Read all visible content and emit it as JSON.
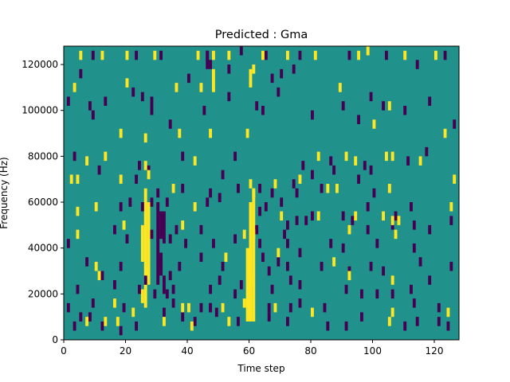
{
  "chart_data": {
    "type": "heatmap",
    "title": "Predicted : Gma",
    "xlabel": "Time step",
    "ylabel": "Frequency (Hz)",
    "xlim": [
      0,
      128
    ],
    "ylim": [
      0,
      128000
    ],
    "x_ticks": [
      0,
      20,
      40,
      60,
      80,
      100,
      120
    ],
    "y_ticks": [
      0,
      20000,
      40000,
      60000,
      80000,
      100000,
      120000
    ],
    "grid": false,
    "colormap": "viridis",
    "colors": {
      "background": "#21918c",
      "high": "#fde725",
      "low": "#440154"
    },
    "cell_height_hz": 2000,
    "high_cells": [
      [
        5,
        122000
      ],
      [
        12,
        122000
      ],
      [
        20,
        122000
      ],
      [
        29,
        122000
      ],
      [
        43,
        122000
      ],
      [
        48,
        122000
      ],
      [
        53,
        122000
      ],
      [
        64,
        122000
      ],
      [
        72,
        122000
      ],
      [
        81,
        122000
      ],
      [
        95,
        122000
      ],
      [
        98,
        124000
      ],
      [
        110,
        122000
      ],
      [
        120,
        122000
      ],
      [
        3,
        108000
      ],
      [
        20,
        110000
      ],
      [
        36,
        108000
      ],
      [
        44,
        108000
      ],
      [
        61,
        116000
      ],
      [
        89,
        108000
      ],
      [
        105,
        100000
      ],
      [
        18,
        88000
      ],
      [
        26,
        86000
      ],
      [
        37,
        88000
      ],
      [
        47,
        88000
      ],
      [
        59,
        88000
      ],
      [
        100,
        92000
      ],
      [
        123,
        88000
      ],
      [
        7,
        76000
      ],
      [
        13,
        78000
      ],
      [
        26,
        74000
      ],
      [
        27,
        70000
      ],
      [
        42,
        76000
      ],
      [
        82,
        78000
      ],
      [
        91,
        78000
      ],
      [
        94,
        76000
      ],
      [
        104,
        78000
      ],
      [
        106,
        78000
      ],
      [
        115,
        76000
      ],
      [
        2,
        68000
      ],
      [
        4,
        68000
      ],
      [
        18,
        68000
      ],
      [
        35,
        64000
      ],
      [
        60,
        66000
      ],
      [
        61,
        62000
      ],
      [
        68,
        66000
      ],
      [
        76,
        68000
      ],
      [
        85,
        64000
      ],
      [
        88,
        64000
      ],
      [
        105,
        64000
      ],
      [
        126,
        68000
      ],
      [
        4,
        54000
      ],
      [
        10,
        56000
      ],
      [
        42,
        56000
      ],
      [
        70,
        52000
      ],
      [
        82,
        52000
      ],
      [
        94,
        52000
      ],
      [
        103,
        52000
      ],
      [
        106,
        50000
      ],
      [
        125,
        56000
      ],
      [
        4,
        44000
      ],
      [
        19,
        48000
      ],
      [
        38,
        48000
      ],
      [
        58,
        44000
      ],
      [
        61,
        44000
      ],
      [
        92,
        46000
      ],
      [
        107,
        44000
      ],
      [
        108,
        50000
      ],
      [
        10,
        30000
      ],
      [
        11,
        26000
      ],
      [
        27,
        28000
      ],
      [
        52,
        34000
      ],
      [
        60,
        24000
      ],
      [
        69,
        36000
      ],
      [
        87,
        32000
      ],
      [
        92,
        26000
      ],
      [
        106,
        24000
      ],
      [
        16,
        14000
      ],
      [
        22,
        10000
      ],
      [
        38,
        12000
      ],
      [
        40,
        12000
      ],
      [
        51,
        12000
      ],
      [
        58,
        14000
      ],
      [
        68,
        12000
      ],
      [
        80,
        10000
      ],
      [
        106,
        10000
      ],
      [
        124,
        10000
      ],
      [
        7,
        6000
      ],
      [
        13,
        6000
      ],
      [
        17,
        6000
      ],
      [
        32,
        6000
      ],
      [
        41,
        4000
      ],
      [
        53,
        6000
      ],
      [
        105,
        6000
      ]
    ],
    "low_cells": [
      [
        9,
        122000
      ],
      [
        23,
        122000
      ],
      [
        46,
        122000
      ],
      [
        47,
        118000
      ],
      [
        57,
        124000
      ],
      [
        65,
        122000
      ],
      [
        76,
        122000
      ],
      [
        92,
        122000
      ],
      [
        104,
        122000
      ],
      [
        114,
        118000
      ],
      [
        123,
        122000
      ],
      [
        5,
        114000
      ],
      [
        31,
        122000
      ],
      [
        40,
        112000
      ],
      [
        53,
        116000
      ],
      [
        70,
        114000
      ],
      [
        67,
        112000
      ],
      [
        74,
        116000
      ],
      [
        1,
        102000
      ],
      [
        8,
        100000
      ],
      [
        13,
        102000
      ],
      [
        22,
        106000
      ],
      [
        25,
        104000
      ],
      [
        28,
        102000
      ],
      [
        53,
        104000
      ],
      [
        62,
        100000
      ],
      [
        69,
        106000
      ],
      [
        90,
        100000
      ],
      [
        99,
        104000
      ],
      [
        103,
        100000
      ],
      [
        118,
        102000
      ],
      [
        9,
        96000
      ],
      [
        28,
        98000
      ],
      [
        34,
        92000
      ],
      [
        45,
        98000
      ],
      [
        64,
        98000
      ],
      [
        80,
        96000
      ],
      [
        95,
        94000
      ],
      [
        110,
        98000
      ],
      [
        126,
        92000
      ],
      [
        3,
        78000
      ],
      [
        24,
        74000
      ],
      [
        27,
        72000
      ],
      [
        38,
        78000
      ],
      [
        55,
        78000
      ],
      [
        77,
        74000
      ],
      [
        86,
        76000
      ],
      [
        87,
        72000
      ],
      [
        97,
        74000
      ],
      [
        99,
        72000
      ],
      [
        111,
        76000
      ],
      [
        117,
        80000
      ],
      [
        11,
        72000
      ],
      [
        23,
        68000
      ],
      [
        38,
        64000
      ],
      [
        47,
        62000
      ],
      [
        51,
        70000
      ],
      [
        56,
        64000
      ],
      [
        63,
        64000
      ],
      [
        67,
        62000
      ],
      [
        74,
        66000
      ],
      [
        80,
        70000
      ],
      [
        83,
        64000
      ],
      [
        95,
        68000
      ],
      [
        100,
        62000
      ],
      [
        18,
        56000
      ],
      [
        21,
        58000
      ],
      [
        25,
        56000
      ],
      [
        28,
        58000
      ],
      [
        33,
        58000
      ],
      [
        46,
        58000
      ],
      [
        50,
        60000
      ],
      [
        63,
        54000
      ],
      [
        65,
        56000
      ],
      [
        70,
        58000
      ],
      [
        75,
        62000
      ],
      [
        98,
        56000
      ],
      [
        107,
        52000
      ],
      [
        112,
        56000
      ],
      [
        125,
        50000
      ],
      [
        16,
        46000
      ],
      [
        28,
        44000
      ],
      [
        36,
        46000
      ],
      [
        44,
        46000
      ],
      [
        62,
        46000
      ],
      [
        72,
        48000
      ],
      [
        75,
        50000
      ],
      [
        78,
        50000
      ],
      [
        80,
        52000
      ],
      [
        90,
        52000
      ],
      [
        93,
        50000
      ],
      [
        98,
        46000
      ],
      [
        106,
        48000
      ],
      [
        113,
        48000
      ],
      [
        118,
        46000
      ],
      [
        1,
        40000
      ],
      [
        20,
        42000
      ],
      [
        34,
        42000
      ],
      [
        39,
        40000
      ],
      [
        48,
        40000
      ],
      [
        55,
        42000
      ],
      [
        63,
        40000
      ],
      [
        71,
        44000
      ],
      [
        72,
        40000
      ],
      [
        86,
        40000
      ],
      [
        90,
        38000
      ],
      [
        101,
        40000
      ],
      [
        113,
        38000
      ],
      [
        7,
        32000
      ],
      [
        18,
        30000
      ],
      [
        31,
        32000
      ],
      [
        37,
        30000
      ],
      [
        44,
        34000
      ],
      [
        51,
        30000
      ],
      [
        64,
        34000
      ],
      [
        69,
        32000
      ],
      [
        72,
        30000
      ],
      [
        76,
        36000
      ],
      [
        83,
        30000
      ],
      [
        99,
        30000
      ],
      [
        115,
        32000
      ],
      [
        125,
        30000
      ],
      [
        12,
        26000
      ],
      [
        26,
        24000
      ],
      [
        34,
        26000
      ],
      [
        50,
        24000
      ],
      [
        66,
        28000
      ],
      [
        73,
        24000
      ],
      [
        92,
        28000
      ],
      [
        103,
        28000
      ],
      [
        118,
        24000
      ],
      [
        4,
        20000
      ],
      [
        16,
        22000
      ],
      [
        24,
        20000
      ],
      [
        35,
        20000
      ],
      [
        47,
        20000
      ],
      [
        57,
        22000
      ],
      [
        67,
        20000
      ],
      [
        76,
        22000
      ],
      [
        91,
        20000
      ],
      [
        101,
        18000
      ],
      [
        112,
        20000
      ],
      [
        1,
        12000
      ],
      [
        9,
        14000
      ],
      [
        19,
        12000
      ],
      [
        29,
        18000
      ],
      [
        33,
        18000
      ],
      [
        35,
        14000
      ],
      [
        44,
        12000
      ],
      [
        47,
        12000
      ],
      [
        55,
        18000
      ],
      [
        66,
        12000
      ],
      [
        73,
        12000
      ],
      [
        76,
        14000
      ],
      [
        84,
        12000
      ],
      [
        96,
        18000
      ],
      [
        106,
        18000
      ],
      [
        113,
        14000
      ],
      [
        121,
        12000
      ],
      [
        3,
        4000
      ],
      [
        5,
        8000
      ],
      [
        8,
        8000
      ],
      [
        12,
        4000
      ],
      [
        18,
        2000
      ],
      [
        23,
        4000
      ],
      [
        32,
        10000
      ],
      [
        38,
        8000
      ],
      [
        42,
        6000
      ],
      [
        49,
        10000
      ],
      [
        56,
        6000
      ],
      [
        66,
        8000
      ],
      [
        72,
        6000
      ],
      [
        85,
        4000
      ],
      [
        91,
        4000
      ],
      [
        96,
        8000
      ],
      [
        110,
        4000
      ],
      [
        114,
        6000
      ],
      [
        121,
        6000
      ],
      [
        124,
        4000
      ]
    ],
    "high_runs": [
      {
        "x": 26,
        "y0": 14000,
        "y1": 66000
      },
      {
        "x": 27,
        "y0": 24000,
        "y1": 60000
      },
      {
        "x": 25,
        "y0": 34000,
        "y1": 50000
      },
      {
        "x": 25,
        "y0": 16000,
        "y1": 22000
      },
      {
        "x": 59,
        "y0": 8000,
        "y1": 40000
      },
      {
        "x": 60,
        "y0": 8000,
        "y1": 60000
      },
      {
        "x": 61,
        "y0": 8000,
        "y1": 66000
      },
      {
        "x": 48,
        "y0": 108000,
        "y1": 118000
      },
      {
        "x": 60,
        "y0": 110000,
        "y1": 118000
      }
    ],
    "low_runs": [
      {
        "x": 31,
        "y0": 44000,
        "y1": 56000
      },
      {
        "x": 32,
        "y0": 42000,
        "y1": 56000
      },
      {
        "x": 30,
        "y0": 24000,
        "y1": 60000
      },
      {
        "x": 31,
        "y0": 28000,
        "y1": 38000
      },
      {
        "x": 32,
        "y0": 20000,
        "y1": 28000
      },
      {
        "x": 30,
        "y0": 62000,
        "y1": 66000
      },
      {
        "x": 47,
        "y0": 12000,
        "y1": 16000
      },
      {
        "x": 46,
        "y0": 118000,
        "y1": 126000
      }
    ]
  }
}
